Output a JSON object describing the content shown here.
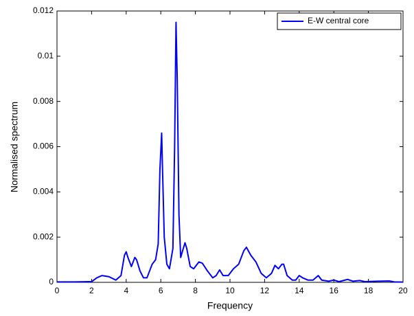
{
  "chart_data": {
    "type": "line",
    "xlabel": "Frequency",
    "ylabel": "Normalised spectrum",
    "x": [
      0,
      1,
      1.8,
      2,
      2.3,
      2.6,
      3,
      3.4,
      3.7,
      3.9,
      4.0,
      4.1,
      4.3,
      4.5,
      4.6,
      4.8,
      5.0,
      5.2,
      5.5,
      5.7,
      5.85,
      5.95,
      6.05,
      6.1,
      6.2,
      6.35,
      6.5,
      6.7,
      6.8,
      6.88,
      6.95,
      7.05,
      7.15,
      7.3,
      7.4,
      7.5,
      7.7,
      7.9,
      8.2,
      8.4,
      8.7,
      9.0,
      9.2,
      9.4,
      9.6,
      9.9,
      10.2,
      10.5,
      10.8,
      10.95,
      11.2,
      11.5,
      11.8,
      12.1,
      12.4,
      12.6,
      12.8,
      13.0,
      13.1,
      13.3,
      13.6,
      13.8,
      14.0,
      14.2,
      14.5,
      14.8,
      15.1,
      15.3,
      15.7,
      16.0,
      16.3,
      16.8,
      17.1,
      17.5,
      17.8,
      18.5,
      19.2,
      19.5,
      20
    ],
    "series": [
      {
        "name": "E-W central core",
        "color": "#0000ff",
        "values": [
          2e-05,
          2e-05,
          3e-05,
          3e-05,
          0.0002,
          0.0003,
          0.00025,
          0.0001,
          0.0003,
          0.0012,
          0.00135,
          0.0011,
          0.0007,
          0.0011,
          0.001,
          0.0005,
          0.0002,
          0.0002,
          0.0008,
          0.001,
          0.0017,
          0.005,
          0.0066,
          0.005,
          0.002,
          0.0008,
          0.0006,
          0.0015,
          0.006,
          0.0115,
          0.009,
          0.003,
          0.0011,
          0.0015,
          0.00175,
          0.0015,
          0.0007,
          0.0006,
          0.0009,
          0.00085,
          0.0005,
          0.0002,
          0.0003,
          0.00055,
          0.0003,
          0.0003,
          0.0006,
          0.0008,
          0.0014,
          0.00155,
          0.0012,
          0.0009,
          0.0004,
          0.0002,
          0.0004,
          0.00075,
          0.0006,
          0.0008,
          0.0008,
          0.0003,
          0.0001,
          0.0001,
          0.0003,
          0.0002,
          0.0001,
          0.0001,
          0.0003,
          0.0001,
          5e-05,
          0.0001,
          3e-05,
          0.00013,
          5e-05,
          8e-05,
          3e-05,
          5e-05,
          6e-05,
          2e-05,
          1e-05
        ]
      }
    ],
    "xlim": [
      0,
      20
    ],
    "xticks": [
      0,
      2,
      4,
      6,
      8,
      10,
      12,
      14,
      16,
      18,
      20
    ],
    "ylim": [
      0,
      0.012
    ],
    "yticks": [
      0,
      0.002,
      0.004,
      0.006,
      0.008,
      0.01,
      0.012
    ],
    "grid": false,
    "legend": "upper right"
  }
}
